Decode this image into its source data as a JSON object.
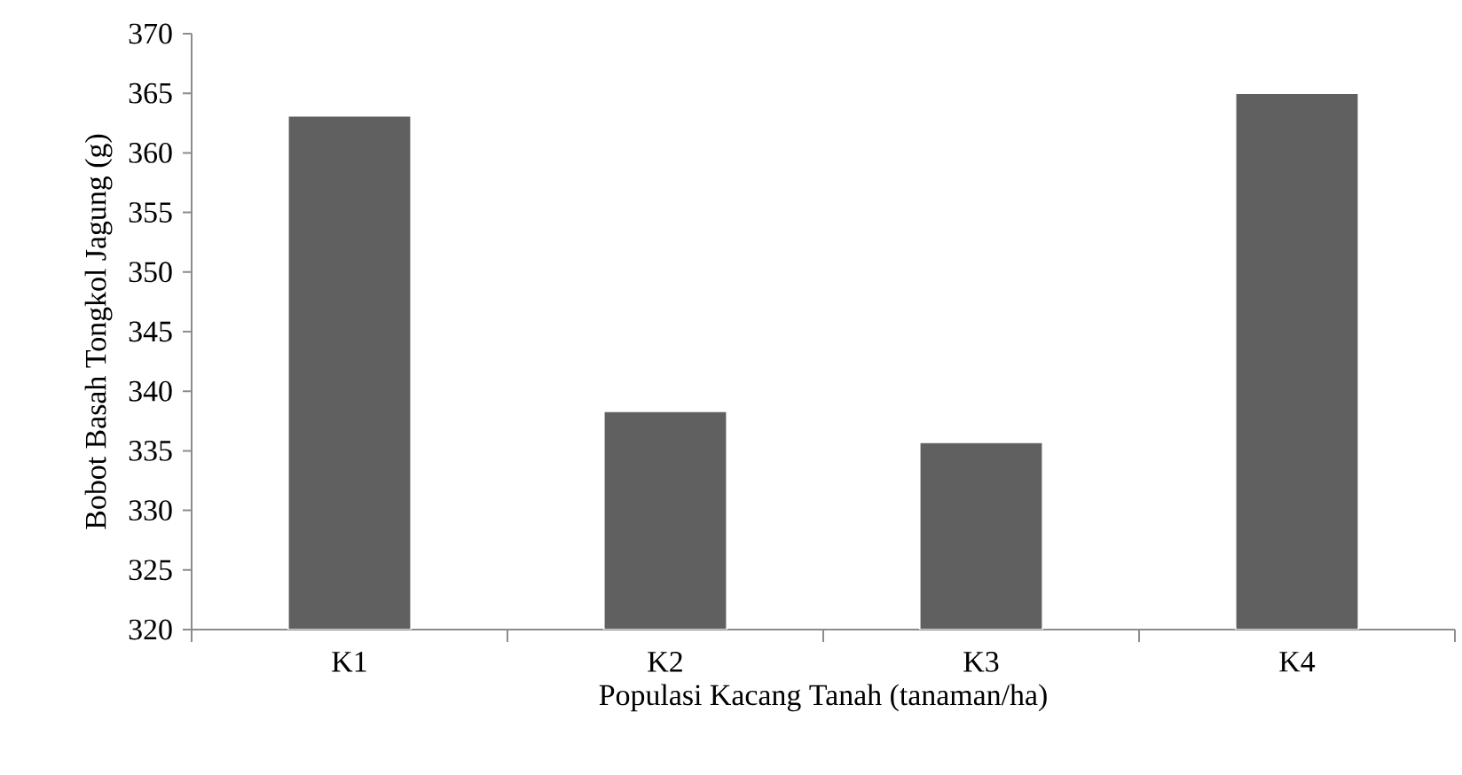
{
  "chart_data": {
    "type": "bar",
    "xlabel": "Populasi Kacang Tanah (tanaman/ha)",
    "ylabel": "Bobot Basah Tongkol Jagung (g)",
    "categories": [
      "K1",
      "K2",
      "K3",
      "K4"
    ],
    "values": [
      363.1,
      338.3,
      335.7,
      365.0
    ],
    "color": "#606060",
    "ylim": [
      320,
      370
    ],
    "yticks": [
      320,
      325,
      330,
      335,
      340,
      345,
      350,
      355,
      360,
      365,
      370
    ],
    "grid": false
  }
}
